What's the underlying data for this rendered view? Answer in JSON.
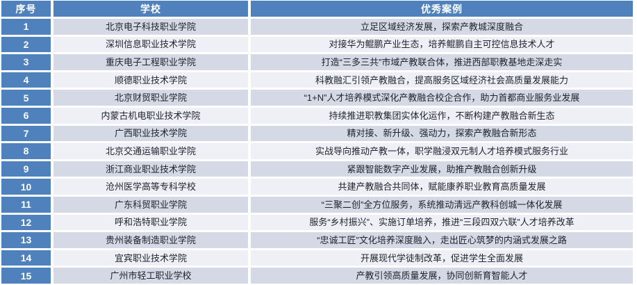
{
  "table": {
    "headers": [
      "序号",
      "学校",
      "优秀案例"
    ],
    "colors": {
      "header_bg": "#4f81bd",
      "index_bg": "#4f81bd",
      "odd_row_bg": "#d5d9e5",
      "even_row_bg": "#eef0f6",
      "border": "#ffffff",
      "header_text": "#ffffff",
      "body_text": "#20242c"
    },
    "rows": [
      {
        "no": "1",
        "school": "北京电子科技职业学院",
        "case": "立足区域经济发展，探索产教城深度融合"
      },
      {
        "no": "2",
        "school": "深圳信息职业技术学院",
        "case": "对接华为鲲鹏产业生态，培养鲲鹏自主可控信息技术人才"
      },
      {
        "no": "3",
        "school": "重庆电子工程职业学院",
        "case": "打造“三多三共”市域产教联合体，推进西部职教基地走深走实"
      },
      {
        "no": "4",
        "school": "顺德职业技术学院",
        "case": "科教融汇引领产教融合，提高服务区域经济社会高质量发展能力"
      },
      {
        "no": "5",
        "school": "北京财贸职业学院",
        "case": "“1+N”人才培养模式深化产教融合校企合作，助力首都商业服务业发展"
      },
      {
        "no": "6",
        "school": "内蒙古机电职业技术学院",
        "case": "持续推进职教集团实体化运作，不断构建产教融合新生态"
      },
      {
        "no": "7",
        "school": "广西职业技术学院",
        "case": "精对接、新升级、强动力，探索产教融合新形态"
      },
      {
        "no": "8",
        "school": "北京交通运输职业学院",
        "case": "实战导向推动产教一体，职学融浸双元制人才培养模式服务行业"
      },
      {
        "no": "9",
        "school": "浙江商业职业技术学院",
        "case": "紧跟智能数字产业发展，助推产教融合创新升级"
      },
      {
        "no": "10",
        "school": "沧州医学高等专科学校",
        "case": "共建产教融合共同体，赋能康养职业教育高质量发展"
      },
      {
        "no": "11",
        "school": "广东科贸职业学院",
        "case": "“三聚二创”全方位服务，系统推动清远产教科创城一体化发展"
      },
      {
        "no": "12",
        "school": "呼和浩特职业学院",
        "case": "服务“乡村振兴”、实施订单培养，推进“三段四双六联”人才培养改革"
      },
      {
        "no": "13",
        "school": "贵州装备制造职业学院",
        "case": "“忠诚工匠”文化培养深度融入，走出匠心筑梦的内涵式发展之路"
      },
      {
        "no": "14",
        "school": "宜宾职业技术学院",
        "case": "开展现代学徒制改革，促进学生全面发展"
      },
      {
        "no": "15",
        "school": "广州市轻工职业学校",
        "case": "产教引领高质量发展，协同创新育智能人才"
      }
    ]
  }
}
